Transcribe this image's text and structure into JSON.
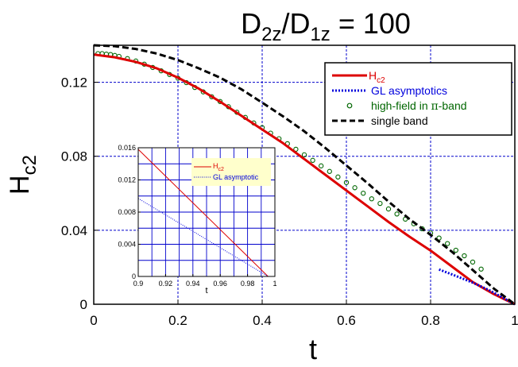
{
  "chart_data": [
    {
      "type": "line",
      "title_main": "D",
      "title_sub1": "2z",
      "title_mid": "/D",
      "title_sub2": "1z",
      "title_tail": " = 100",
      "xlabel": "t",
      "ylabel_main": "H",
      "ylabel_sub": "c2",
      "xlim": [
        0,
        1
      ],
      "ylim": [
        0,
        0.14
      ],
      "x_ticks": [
        0,
        0.2,
        0.4,
        0.6,
        0.8,
        1
      ],
      "x_tick_labels": [
        "0",
        "0.2",
        "0.4",
        "0.6",
        "0.8",
        "1"
      ],
      "y_ticks": [
        0,
        0.04,
        0.08,
        0.12
      ],
      "y_tick_labels": [
        "0",
        "0.04",
        "0.08",
        "0.12"
      ],
      "grid": true,
      "grid_color": "#0000cc",
      "legend_position": "top-right",
      "legend": {
        "hc2_main": "H",
        "hc2_sub": "c2",
        "gl": "GL asymptotics",
        "hf_pre": "high-field in ",
        "hf_greek": "π",
        "hf_post": "-band",
        "single": "single band"
      },
      "series": [
        {
          "name": "Hc2",
          "color": "#dd0000",
          "style": "solid",
          "x": [
            0,
            0.05,
            0.1,
            0.15,
            0.2,
            0.25,
            0.3,
            0.35,
            0.4,
            0.45,
            0.5,
            0.55,
            0.6,
            0.65,
            0.7,
            0.75,
            0.8,
            0.85,
            0.9,
            0.95,
            1.0
          ],
          "y": [
            0.135,
            0.1335,
            0.131,
            0.1275,
            0.1225,
            0.1165,
            0.1095,
            0.102,
            0.0945,
            0.087,
            0.0785,
            0.07,
            0.0615,
            0.053,
            0.0445,
            0.0365,
            0.029,
            0.0205,
            0.012,
            0.0055,
            0.0
          ]
        },
        {
          "name": "GL asymptotics",
          "color": "#0000dd",
          "style": "dotted",
          "x": [
            0.82,
            0.86,
            0.9,
            0.94,
            0.98,
            1.0
          ],
          "y": [
            0.0188,
            0.0153,
            0.0117,
            0.0075,
            0.0025,
            0.0
          ]
        },
        {
          "name": "high-field in π-band",
          "color": "#006600",
          "style": "markers",
          "x": [
            0.01,
            0.02,
            0.03,
            0.04,
            0.05,
            0.06,
            0.08,
            0.1,
            0.12,
            0.14,
            0.16,
            0.18,
            0.2,
            0.22,
            0.24,
            0.26,
            0.28,
            0.3,
            0.32,
            0.34,
            0.36,
            0.38,
            0.4,
            0.42,
            0.44,
            0.46,
            0.48,
            0.5,
            0.52,
            0.54,
            0.56,
            0.58,
            0.6,
            0.62,
            0.64,
            0.66,
            0.68,
            0.7,
            0.72,
            0.74,
            0.76,
            0.78,
            0.8,
            0.82,
            0.84,
            0.86,
            0.88,
            0.9,
            0.92
          ],
          "y": [
            0.1355,
            0.1355,
            0.1352,
            0.135,
            0.1345,
            0.134,
            0.1328,
            0.1315,
            0.1298,
            0.128,
            0.1262,
            0.1242,
            0.1222,
            0.1198,
            0.1172,
            0.1148,
            0.1122,
            0.1096,
            0.1068,
            0.1038,
            0.101,
            0.098,
            0.0955,
            0.0925,
            0.0895,
            0.0868,
            0.0838,
            0.0808,
            0.0778,
            0.0748,
            0.0718,
            0.0688,
            0.0658,
            0.063,
            0.06,
            0.057,
            0.0545,
            0.0515,
            0.0488,
            0.046,
            0.0435,
            0.0408,
            0.0385,
            0.0358,
            0.0328,
            0.0292,
            0.0262,
            0.0228,
            0.019
          ]
        },
        {
          "name": "single band",
          "color": "#000000",
          "style": "dashed",
          "x": [
            0,
            0.05,
            0.1,
            0.15,
            0.2,
            0.25,
            0.3,
            0.35,
            0.4,
            0.45,
            0.5,
            0.55,
            0.6,
            0.65,
            0.7,
            0.75,
            0.8,
            0.85,
            0.9,
            0.95,
            1.0
          ],
          "y": [
            0.14,
            0.1395,
            0.138,
            0.1355,
            0.132,
            0.1275,
            0.1225,
            0.1163,
            0.109,
            0.1015,
            0.0935,
            0.0845,
            0.075,
            0.0655,
            0.0555,
            0.046,
            0.0375,
            0.0285,
            0.0185,
            0.0085,
            0.0
          ]
        }
      ]
    },
    {
      "type": "line",
      "xlabel": "t",
      "xlim": [
        0.9,
        1.0
      ],
      "ylim": [
        0,
        0.016
      ],
      "x_ticks": [
        0.9,
        0.92,
        0.94,
        0.96,
        0.98,
        1.0
      ],
      "x_tick_labels": [
        "0.9",
        "0.92",
        "0.94",
        "0.96",
        "0.98",
        "1"
      ],
      "y_ticks": [
        0,
        0.004,
        0.008,
        0.012,
        0.016
      ],
      "y_tick_labels": [
        "0",
        "0.004",
        "0.008",
        "0.012",
        "0.016"
      ],
      "grid": true,
      "legend_position": "top-right",
      "legend": {
        "hc2_main": "H",
        "hc2_sub": "c2",
        "gl": "GL asymptotic"
      },
      "series": [
        {
          "name": "Hc2",
          "color": "#dd0000",
          "style": "solid",
          "x": [
            0.9,
            0.995
          ],
          "y": [
            0.0158,
            0.0
          ]
        },
        {
          "name": "GL asymptotic",
          "color": "#0000dd",
          "style": "dotted",
          "x": [
            0.9,
            0.995
          ],
          "y": [
            0.0097,
            0.0
          ]
        }
      ]
    }
  ]
}
